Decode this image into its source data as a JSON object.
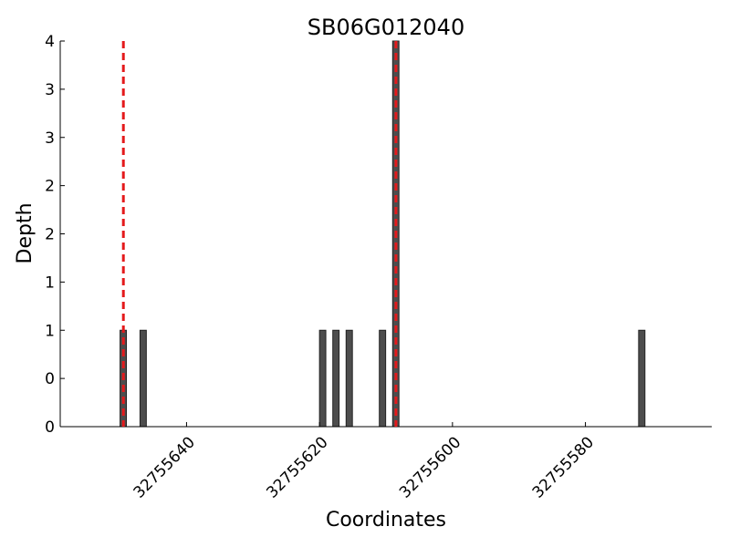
{
  "chart_data": {
    "type": "bar",
    "title": "SB06G012040",
    "xlabel": "Coordinates",
    "ylabel": "Depth",
    "x": [
      32755650,
      32755647,
      32755620,
      32755618,
      32755616,
      32755611,
      32755609,
      32755572
    ],
    "values": [
      1,
      1,
      1,
      1,
      1,
      1,
      4,
      1
    ],
    "color": "#4d4d4d",
    "xlim": [
      32755659,
      32755561
    ],
    "xticks": [
      32755640,
      32755620,
      32755600,
      32755580
    ],
    "ylim": [
      0,
      4
    ],
    "yticks": [
      0,
      {
        "value": 0.5,
        "label": "0"
      },
      1,
      {
        "value": 1.5,
        "label": "1"
      },
      2,
      {
        "value": 2.5,
        "label": "2"
      },
      3,
      {
        "value": 3.5,
        "label": "3"
      },
      4
    ],
    "vlines": [
      32755649.5,
      32755608.5
    ],
    "vline_color": "#e41a1c",
    "grid": false
  }
}
